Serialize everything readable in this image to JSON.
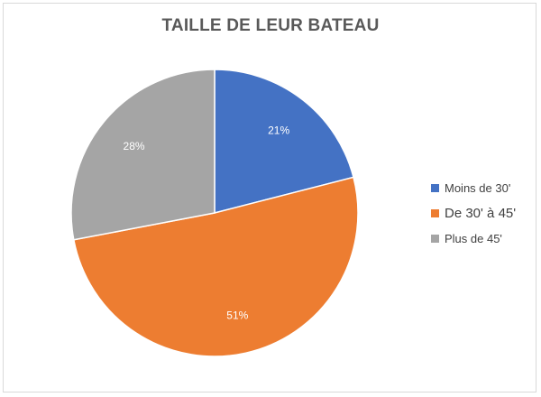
{
  "chart_data": {
    "type": "pie",
    "title": "TAILLE DE LEUR BATEAU",
    "legend_position": "right",
    "slices": [
      {
        "label": "Moins de 30'",
        "value": 21,
        "value_label": "21%",
        "color": "#4472c4"
      },
      {
        "label": "De 30' à 45'",
        "value": 51,
        "value_label": "51%",
        "color": "#ed7d31"
      },
      {
        "label": "Plus de 45'",
        "value": 28,
        "value_label": "28%",
        "color": "#a5a5a5"
      }
    ]
  }
}
